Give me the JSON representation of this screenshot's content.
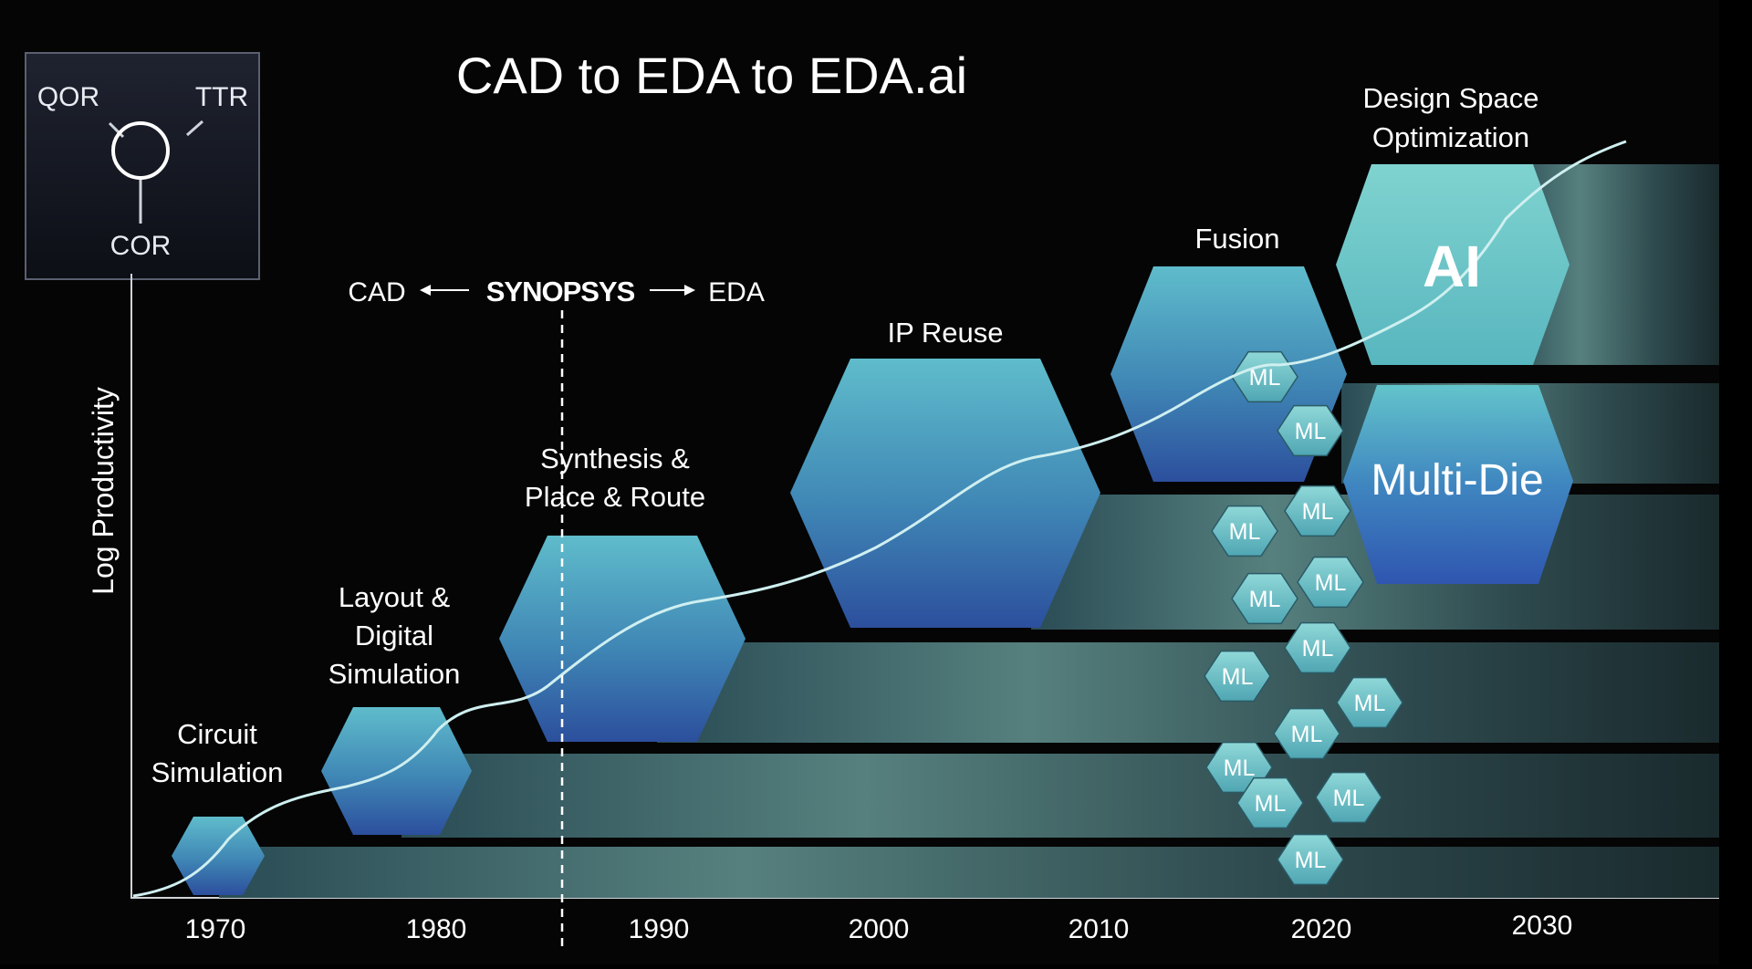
{
  "title": "CAD to EDA to EDA.ai",
  "legend": {
    "qor": "QOR",
    "ttr": "TTR",
    "cor": "COR"
  },
  "axis": {
    "ylabel": "Log Productivity",
    "years": [
      "1970",
      "1980",
      "1990",
      "2000",
      "2010",
      "2020",
      "2030"
    ]
  },
  "marker": {
    "left": "CAD",
    "logo": "SYNOPSYS",
    "right": "EDA"
  },
  "eras": {
    "circuit_1": "Circuit",
    "circuit_2": "Simulation",
    "layout_1": "Layout &",
    "layout_2": "Digital",
    "layout_3": "Simulation",
    "synth_1": "Synthesis &",
    "synth_2": "Place & Route",
    "ip": "IP Reuse",
    "fusion": "Fusion",
    "dso_1": "Design Space",
    "dso_2": "Optimization",
    "ai": "AI",
    "multidie": "Multi-Die"
  },
  "ml_label": "ML",
  "colors": {
    "hex_top": "#5bb8c6",
    "hex_bottom": "#2b4f9c",
    "ai_hex": "#72c9c4",
    "curve": "#cfeff0"
  }
}
